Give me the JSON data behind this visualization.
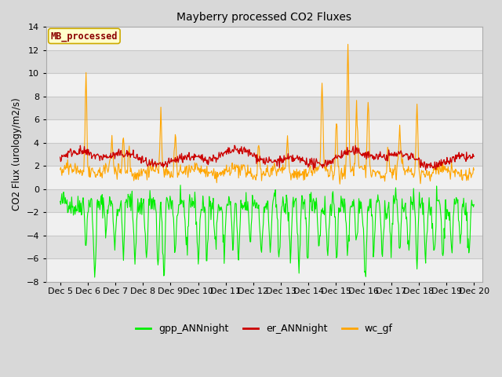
{
  "title": "Mayberry processed CO2 Fluxes",
  "ylabel": "CO2 Flux (urology/m2/s)",
  "ylim": [
    -8,
    14
  ],
  "yticks": [
    -8,
    -6,
    -4,
    -2,
    0,
    2,
    4,
    6,
    8,
    10,
    12,
    14
  ],
  "xlim_days": [
    4.5,
    20.3
  ],
  "xtick_days": [
    5,
    6,
    7,
    8,
    9,
    10,
    11,
    12,
    13,
    14,
    15,
    16,
    17,
    18,
    19,
    20
  ],
  "xtick_labels": [
    "Dec 5",
    "Dec 6",
    "Dec 7",
    "Dec 8",
    "Dec 9",
    "Dec 10",
    "Dec 11",
    "Dec 12",
    "Dec 13",
    "Dec 14",
    "Dec 15",
    "Dec 16",
    "Dec 17",
    "Dec 18",
    "Dec 19",
    "Dec 20"
  ],
  "gpp_color": "#00ee00",
  "er_color": "#cc0000",
  "wc_color": "#ffa500",
  "legend_label_box": "MB_processed",
  "legend_box_facecolor": "#ffffcc",
  "legend_box_edgecolor": "#ccaa00",
  "legend_box_textcolor": "#8b0000",
  "bg_color": "#d8d8d8",
  "plot_bg_light": "#f0f0f0",
  "plot_bg_dark": "#e0e0e0",
  "grid_color": "#c8c8c8",
  "figsize": [
    6.4,
    4.8
  ],
  "dpi": 100,
  "n_points": 720,
  "seed": 42
}
